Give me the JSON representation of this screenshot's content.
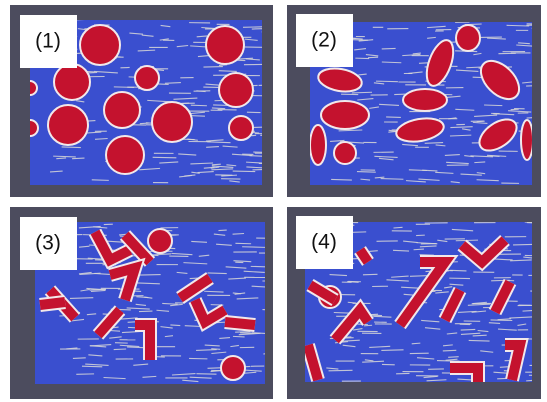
{
  "panels": [
    {
      "label": "(1)"
    },
    {
      "label": "(2)"
    },
    {
      "label": "(3)"
    },
    {
      "label": "(4)"
    }
  ]
}
